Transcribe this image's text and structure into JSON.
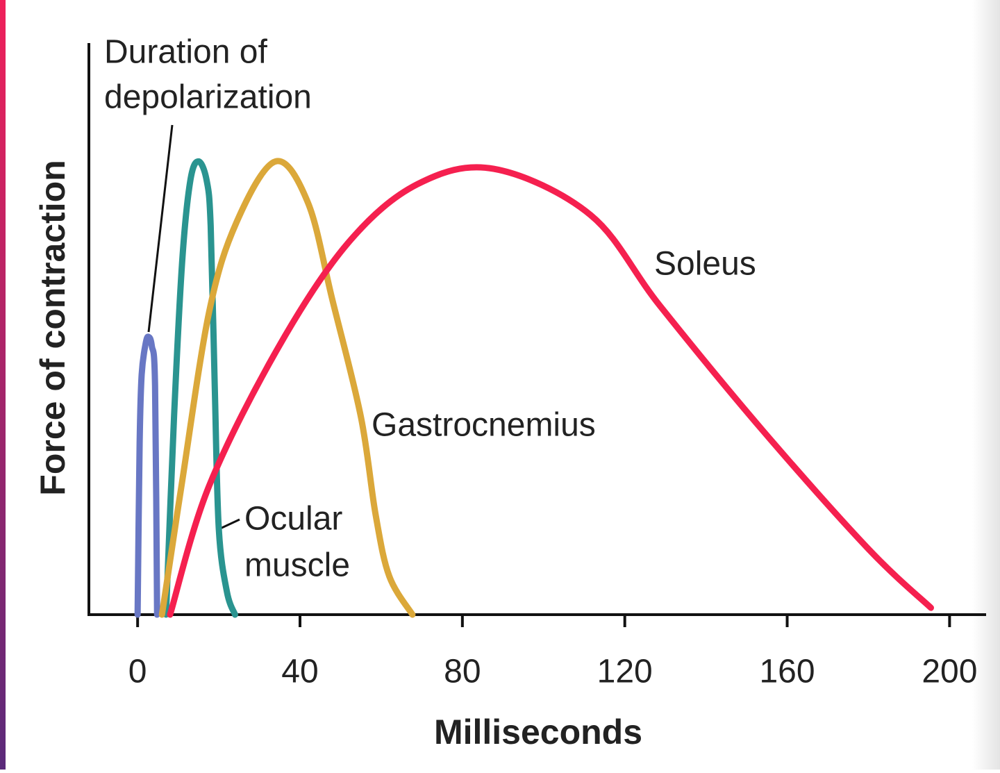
{
  "chart_data": {
    "type": "line",
    "x_label": "Milliseconds",
    "y_label": "Force of contraction",
    "xlim": [
      -12,
      209
    ],
    "xticks": [
      0,
      40,
      80,
      120,
      160,
      200
    ],
    "ylim": [
      0,
      100
    ],
    "series": [
      {
        "name": "Duration of depolarization",
        "label_lines": [
          "Duration of",
          "depolarization"
        ],
        "color": "#6877c4",
        "x": [
          0,
          0.5,
          1,
          2,
          2.7,
          3.5,
          4.3,
          4.8
        ],
        "y": [
          0,
          30,
          42,
          47.5,
          48.6,
          47,
          40,
          0
        ]
      },
      {
        "name": "Ocular muscle",
        "label_lines": [
          "Ocular",
          "muscle"
        ],
        "color": "#2a9490",
        "x": [
          7,
          9,
          11,
          13,
          15,
          17,
          18,
          19,
          20,
          22,
          24
        ],
        "y": [
          0,
          35,
          62,
          76,
          79.3,
          76,
          68,
          40,
          15,
          4,
          0
        ]
      },
      {
        "name": "Gastrocnemius",
        "label_lines": [
          "Gastrocnemius"
        ],
        "color": "#dba83a",
        "x": [
          6,
          10.8,
          17.6,
          24.4,
          34,
          42,
          48,
          55,
          58.6,
          62,
          67.7
        ],
        "y": [
          0,
          22.5,
          52.9,
          68.7,
          79.3,
          72,
          55,
          34.6,
          17.6,
          6.7,
          0
        ]
      },
      {
        "name": "Soleus",
        "label_lines": [
          "Soleus"
        ],
        "color": "#f5204f",
        "x": [
          8,
          17.6,
          34.7,
          51.8,
          68.9,
          87.7,
          111.6,
          128.7,
          154,
          180,
          195.4
        ],
        "y": [
          0,
          22.5,
          46.8,
          65,
          75.3,
          78,
          69.9,
          54,
          32.2,
          11.5,
          1.2
        ]
      }
    ]
  }
}
